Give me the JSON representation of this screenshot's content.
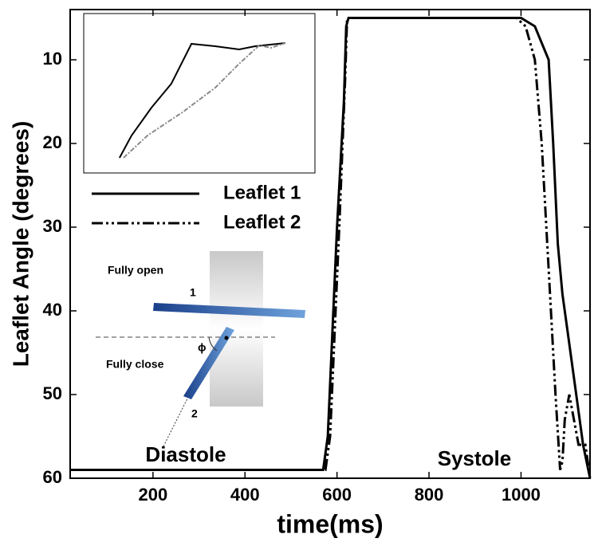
{
  "chart_data": {
    "type": "line",
    "xlabel": "time(ms)",
    "ylabel": "Leaflet Angle (degrees)",
    "xlim": [
      20,
      1150
    ],
    "ylim": [
      4,
      60
    ],
    "y_reversed": true,
    "xticks": [
      200,
      400,
      600,
      800,
      1000
    ],
    "yticks": [
      10,
      20,
      30,
      40,
      50,
      60
    ],
    "legend": "upper left",
    "series": [
      {
        "name": "Leaflet 1",
        "color": "#000000",
        "style": "solid",
        "x": [
          20,
          570,
          580,
          600,
          615,
          620,
          625,
          1000,
          1030,
          1060,
          1070,
          1080,
          1090,
          1100,
          1120,
          1135,
          1150
        ],
        "values": [
          59,
          59,
          55,
          30,
          15,
          6,
          5,
          5,
          6,
          10,
          20,
          32,
          38,
          42,
          50,
          56,
          60
        ]
      },
      {
        "name": "Leaflet 2",
        "color": "#000000",
        "style": "dashdotdot",
        "x": [
          20,
          575,
          585,
          605,
          618,
          622,
          630,
          990,
          1010,
          1030,
          1045,
          1060,
          1075,
          1085,
          1090,
          1095,
          1105,
          1115,
          1125,
          1140,
          1150
        ],
        "values": [
          59,
          59,
          55,
          30,
          12,
          5,
          5,
          5,
          6,
          10,
          20,
          35,
          50,
          59,
          58,
          53,
          50,
          53,
          56,
          56,
          60
        ]
      }
    ],
    "annotations": [
      "Diastole",
      "Systole",
      "Fully open",
      "1",
      "Fully close",
      "2",
      "ϕ"
    ],
    "inset": {
      "xlim": [
        0,
        100
      ],
      "ylim": [
        0,
        100
      ],
      "series": [
        {
          "color": "#000000",
          "x": [
            15.5,
            20.7,
            29.3,
            37.9,
            46.6,
            56.9,
            67.2,
            74.1,
            87.2
          ],
          "values": [
            9.5,
            23.5,
            41,
            56,
            81,
            79.5,
            77.5,
            79.5,
            81.5
          ]
        },
        {
          "color": "#8a8a8a",
          "x": [
            17.2,
            27.6,
            43.1,
            56.9,
            67.2,
            75.9,
            81,
            87.2
          ],
          "values": [
            9.5,
            23.5,
            38.5,
            53.5,
            68.5,
            80,
            78.5,
            81.5
          ]
        }
      ]
    }
  }
}
